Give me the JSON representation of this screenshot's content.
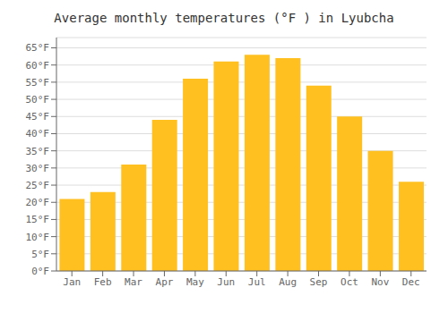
{
  "chart_data": {
    "type": "bar",
    "title": "Average monthly temperatures (°F ) in Lyubcha",
    "categories": [
      "Jan",
      "Feb",
      "Mar",
      "Apr",
      "May",
      "Jun",
      "Jul",
      "Aug",
      "Sep",
      "Oct",
      "Nov",
      "Dec"
    ],
    "values": [
      21,
      23,
      31,
      44,
      56,
      61,
      63,
      62,
      54,
      45,
      35,
      26
    ],
    "color": "#FFC020",
    "ylim": [
      0,
      68
    ],
    "yticks": [
      {
        "value": 0,
        "label": "0°F"
      },
      {
        "value": 5,
        "label": "5°F"
      },
      {
        "value": 10,
        "label": "10°F"
      },
      {
        "value": 15,
        "label": "15°F"
      },
      {
        "value": 20,
        "label": "20°F"
      },
      {
        "value": 25,
        "label": "25°F"
      },
      {
        "value": 30,
        "label": "30°F"
      },
      {
        "value": 35,
        "label": "35°F"
      },
      {
        "value": 40,
        "label": "40°F"
      },
      {
        "value": 45,
        "label": "45°F"
      },
      {
        "value": 50,
        "label": "50°F"
      },
      {
        "value": 55,
        "label": "55°F"
      },
      {
        "value": 60,
        "label": "60°F"
      },
      {
        "value": 65,
        "label": "65°F"
      }
    ],
    "grid": true
  }
}
